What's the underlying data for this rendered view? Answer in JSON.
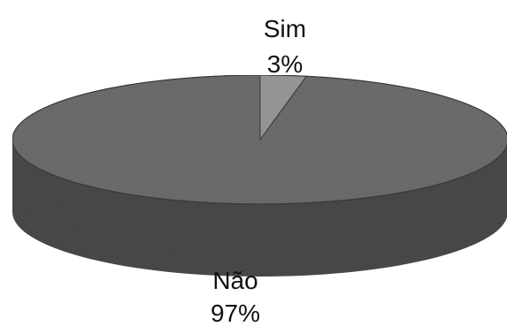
{
  "chart_data": {
    "type": "pie",
    "three_d": true,
    "title": "",
    "slices": [
      {
        "label": "Sim",
        "value": 3,
        "value_label": "3%",
        "color": "#9a9a9a"
      },
      {
        "label": "Não",
        "value": 97,
        "value_label": "97%",
        "color": "#6e6e6e"
      }
    ]
  },
  "colors": {
    "background": "#ffffff",
    "side": "#4a4a4a",
    "text": "#111111"
  }
}
